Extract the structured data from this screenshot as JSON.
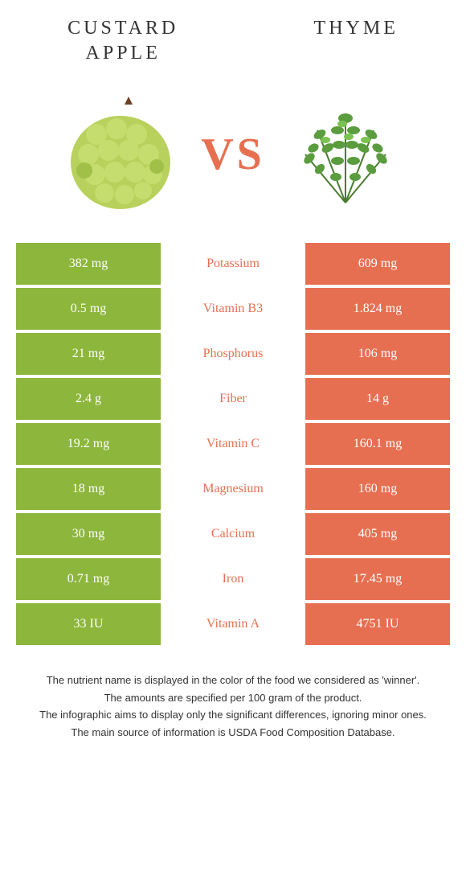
{
  "header": {
    "left_title": "CUSTARD\nAPPLE",
    "right_title": "THYME"
  },
  "vs_label": "VS",
  "colors": {
    "left_bg": "#8cb63c",
    "right_bg": "#e76f51",
    "left_text": "#ffffff",
    "right_text": "#ffffff",
    "background": "#ffffff"
  },
  "nutrients": [
    {
      "name": "Potassium",
      "left": "382 mg",
      "right": "609 mg",
      "winner": "right"
    },
    {
      "name": "Vitamin B3",
      "left": "0.5 mg",
      "right": "1.824 mg",
      "winner": "right"
    },
    {
      "name": "Phosphorus",
      "left": "21 mg",
      "right": "106 mg",
      "winner": "right"
    },
    {
      "name": "Fiber",
      "left": "2.4 g",
      "right": "14 g",
      "winner": "right"
    },
    {
      "name": "Vitamin C",
      "left": "19.2 mg",
      "right": "160.1 mg",
      "winner": "right"
    },
    {
      "name": "Magnesium",
      "left": "18 mg",
      "right": "160 mg",
      "winner": "right"
    },
    {
      "name": "Calcium",
      "left": "30 mg",
      "right": "405 mg",
      "winner": "right"
    },
    {
      "name": "Iron",
      "left": "0.71 mg",
      "right": "17.45 mg",
      "winner": "right"
    },
    {
      "name": "Vitamin A",
      "left": "33 IU",
      "right": "4751 IU",
      "winner": "right"
    }
  ],
  "footer": {
    "line1": "The nutrient name is displayed in the color of the food we considered as 'winner'.",
    "line2": "The amounts are specified per 100 gram of the product.",
    "line3": "The infographic aims to display only the significant differences, ignoring minor ones.",
    "line4": "The main source of information is USDA Food Composition Database."
  }
}
